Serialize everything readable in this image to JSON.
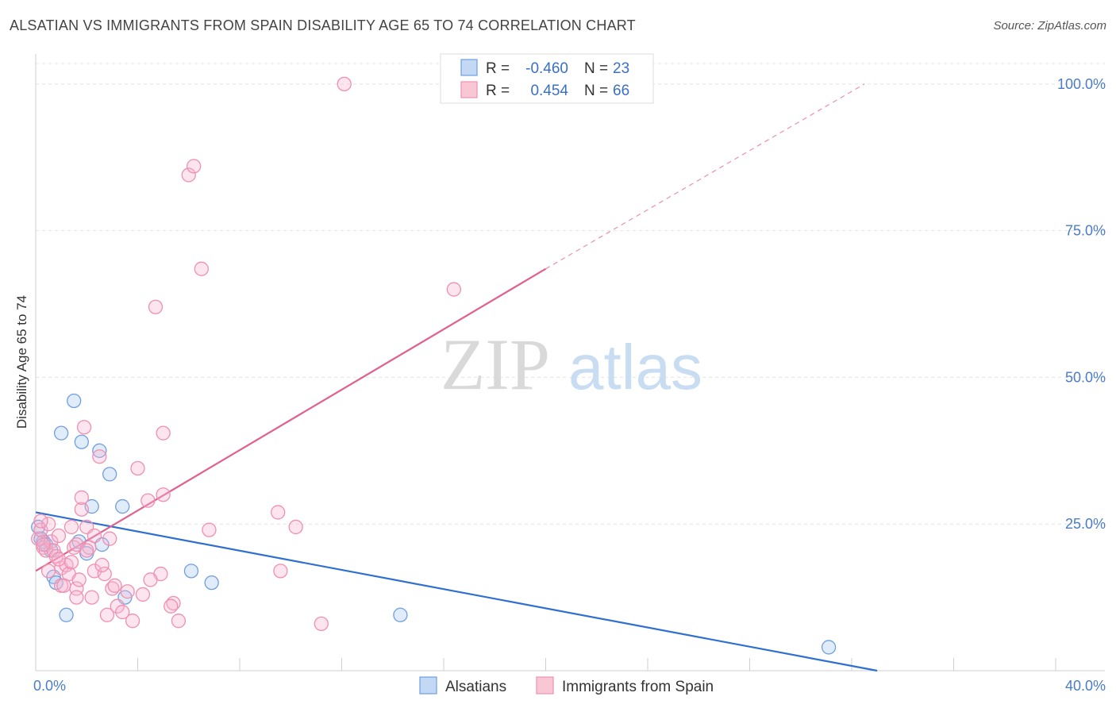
{
  "title": "ALSATIAN VS IMMIGRANTS FROM SPAIN DISABILITY AGE 65 TO 74 CORRELATION CHART",
  "source": "Source: ZipAtlas.com",
  "watermark": {
    "zip": "ZIP",
    "atlas": "atlas"
  },
  "chart_data": {
    "type": "scatter",
    "ylabel": "Disability Age 65 to 74",
    "xlim": [
      0,
      40
    ],
    "ylim": [
      0,
      100
    ],
    "x_tick_labels": [
      {
        "value": 0,
        "label": "0.0%"
      },
      {
        "value": 40,
        "label": "40.0%"
      }
    ],
    "y_tick_labels": [
      {
        "value": 25,
        "label": "25.0%"
      },
      {
        "value": 50,
        "label": "50.0%"
      },
      {
        "value": 75,
        "label": "75.0%"
      },
      {
        "value": 100,
        "label": "100.0%"
      }
    ],
    "grid": true,
    "legend": {
      "position": "top-center",
      "rows": [
        {
          "r_label": "R =",
          "r_value": "-0.460",
          "n_label": "N =",
          "n_value": "23"
        },
        {
          "r_label": "R =",
          "r_value": "0.454",
          "n_label": "N =",
          "n_value": "66"
        }
      ]
    },
    "series": [
      {
        "name": "Alsatians",
        "color": "#6f9fe0",
        "trend_color": "#2f6fd0",
        "trend": {
          "x": [
            0,
            33
          ],
          "y": [
            27.0,
            0
          ]
        },
        "points": [
          [
            0.1,
            24.5
          ],
          [
            0.3,
            22.0
          ],
          [
            0.4,
            21.5
          ],
          [
            0.6,
            20.5
          ],
          [
            0.7,
            16.0
          ],
          [
            0.8,
            15.0
          ],
          [
            1.0,
            40.5
          ],
          [
            1.2,
            9.5
          ],
          [
            1.5,
            46.0
          ],
          [
            1.7,
            22.0
          ],
          [
            1.8,
            39.0
          ],
          [
            2.0,
            20.0
          ],
          [
            2.2,
            28.0
          ],
          [
            2.5,
            37.5
          ],
          [
            2.6,
            21.5
          ],
          [
            2.9,
            33.5
          ],
          [
            3.4,
            28.0
          ],
          [
            3.5,
            12.5
          ],
          [
            6.1,
            17.0
          ],
          [
            6.9,
            15.0
          ],
          [
            14.3,
            9.5
          ],
          [
            31.1,
            4.0
          ],
          [
            0.2,
            22.5
          ]
        ]
      },
      {
        "name": "Immigrants from Spain",
        "color": "#f08fb0",
        "trend_color": "#e0608f",
        "trend": {
          "x": [
            0,
            20
          ],
          "y": [
            17.0,
            68.5
          ]
        },
        "trend_dashed": {
          "x": [
            20,
            32.5
          ],
          "y": [
            68.5,
            100.0
          ]
        },
        "points": [
          [
            0.1,
            22.5
          ],
          [
            0.2,
            24.0
          ],
          [
            0.3,
            21.0
          ],
          [
            0.4,
            20.5
          ],
          [
            0.5,
            25.0
          ],
          [
            0.6,
            22.0
          ],
          [
            0.7,
            20.5
          ],
          [
            0.8,
            19.5
          ],
          [
            0.9,
            23.0
          ],
          [
            1.0,
            17.5
          ],
          [
            1.0,
            14.5
          ],
          [
            1.2,
            18.0
          ],
          [
            1.3,
            16.5
          ],
          [
            1.4,
            24.5
          ],
          [
            1.5,
            21.0
          ],
          [
            1.6,
            14.0
          ],
          [
            1.6,
            12.5
          ],
          [
            1.7,
            15.5
          ],
          [
            1.8,
            27.5
          ],
          [
            1.8,
            29.5
          ],
          [
            1.9,
            41.5
          ],
          [
            2.0,
            24.5
          ],
          [
            2.1,
            21.0
          ],
          [
            2.2,
            12.5
          ],
          [
            2.3,
            17.0
          ],
          [
            2.3,
            23.0
          ],
          [
            2.5,
            36.5
          ],
          [
            2.7,
            16.5
          ],
          [
            2.8,
            9.5
          ],
          [
            2.9,
            22.5
          ],
          [
            3.0,
            14.0
          ],
          [
            3.2,
            11.0
          ],
          [
            3.4,
            10.0
          ],
          [
            3.6,
            13.5
          ],
          [
            3.8,
            8.5
          ],
          [
            4.0,
            34.5
          ],
          [
            4.2,
            13.0
          ],
          [
            4.4,
            29.0
          ],
          [
            4.9,
            16.5
          ],
          [
            5.0,
            30.0
          ],
          [
            5.0,
            40.5
          ],
          [
            5.4,
            11.5
          ],
          [
            5.6,
            8.5
          ],
          [
            6.0,
            84.5
          ],
          [
            6.2,
            86.0
          ],
          [
            6.5,
            68.5
          ],
          [
            6.8,
            24.0
          ],
          [
            4.7,
            62.0
          ],
          [
            9.5,
            27.0
          ],
          [
            9.6,
            17.0
          ],
          [
            10.2,
            24.5
          ],
          [
            11.2,
            8.0
          ],
          [
            12.1,
            100.0
          ],
          [
            16.4,
            65.0
          ],
          [
            5.3,
            11.0
          ],
          [
            1.1,
            14.5
          ],
          [
            0.9,
            19.0
          ],
          [
            1.6,
            21.5
          ],
          [
            2.0,
            20.5
          ],
          [
            0.3,
            21.5
          ],
          [
            0.5,
            17.0
          ],
          [
            1.4,
            18.5
          ],
          [
            3.1,
            14.5
          ],
          [
            0.2,
            25.5
          ],
          [
            4.5,
            15.5
          ],
          [
            2.6,
            18.0
          ]
        ]
      }
    ]
  }
}
